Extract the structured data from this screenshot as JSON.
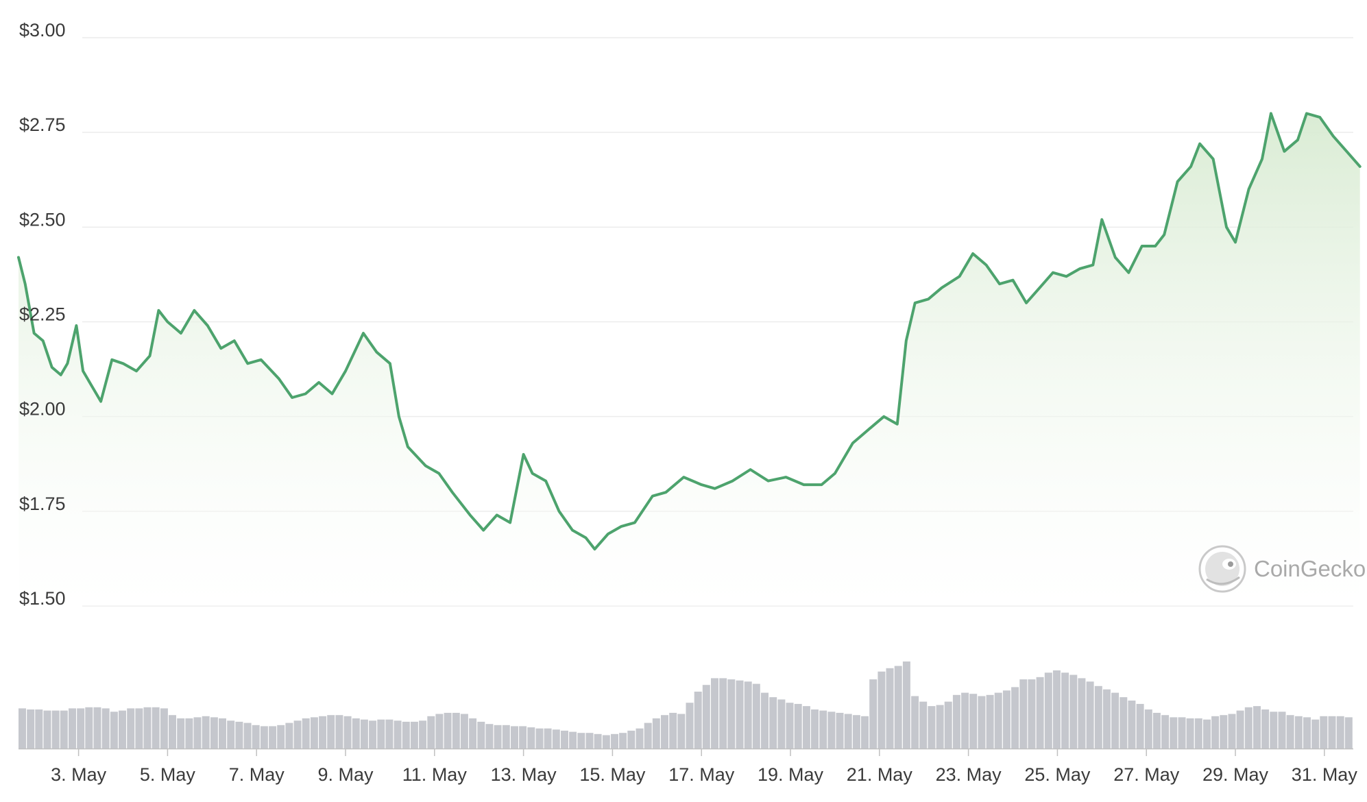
{
  "chart_data": {
    "type": "area",
    "title": "",
    "xlabel": "",
    "ylabel": "",
    "y_axis": {
      "min": 1.5,
      "max": 3.0,
      "ticks": [
        {
          "value": 3.0,
          "label": "$3.00"
        },
        {
          "value": 2.75,
          "label": "$2.75"
        },
        {
          "value": 2.5,
          "label": "$2.50"
        },
        {
          "value": 2.25,
          "label": "$2.25"
        },
        {
          "value": 2.0,
          "label": "$2.00"
        },
        {
          "value": 1.75,
          "label": "$1.75"
        },
        {
          "value": 1.5,
          "label": "$1.50"
        }
      ]
    },
    "x_axis": {
      "min": 1.65,
      "max": 31.65,
      "ticks": [
        {
          "value": 3,
          "label": "3. May"
        },
        {
          "value": 5,
          "label": "5. May"
        },
        {
          "value": 7,
          "label": "7. May"
        },
        {
          "value": 9,
          "label": "9. May"
        },
        {
          "value": 11,
          "label": "11. May"
        },
        {
          "value": 13,
          "label": "13. May"
        },
        {
          "value": 15,
          "label": "15. May"
        },
        {
          "value": 17,
          "label": "17. May"
        },
        {
          "value": 19,
          "label": "19. May"
        },
        {
          "value": 21,
          "label": "21. May"
        },
        {
          "value": 23,
          "label": "23. May"
        },
        {
          "value": 25,
          "label": "25. May"
        },
        {
          "value": 27,
          "label": "27. May"
        },
        {
          "value": 29,
          "label": "29. May"
        },
        {
          "value": 31,
          "label": "31. May"
        }
      ]
    },
    "grid": true,
    "legend": "none",
    "series": [
      {
        "values": [
          [
            1.65,
            2.42
          ],
          [
            1.8,
            2.35
          ],
          [
            2.0,
            2.22
          ],
          [
            2.2,
            2.2
          ],
          [
            2.4,
            2.13
          ],
          [
            2.6,
            2.11
          ],
          [
            2.75,
            2.14
          ],
          [
            2.95,
            2.24
          ],
          [
            3.1,
            2.12
          ],
          [
            3.3,
            2.08
          ],
          [
            3.5,
            2.04
          ],
          [
            3.75,
            2.15
          ],
          [
            4.0,
            2.14
          ],
          [
            4.3,
            2.12
          ],
          [
            4.6,
            2.16
          ],
          [
            4.8,
            2.28
          ],
          [
            5.0,
            2.25
          ],
          [
            5.3,
            2.22
          ],
          [
            5.6,
            2.28
          ],
          [
            5.9,
            2.24
          ],
          [
            6.2,
            2.18
          ],
          [
            6.5,
            2.2
          ],
          [
            6.8,
            2.14
          ],
          [
            7.1,
            2.15
          ],
          [
            7.5,
            2.1
          ],
          [
            7.8,
            2.05
          ],
          [
            8.1,
            2.06
          ],
          [
            8.4,
            2.09
          ],
          [
            8.7,
            2.06
          ],
          [
            9.0,
            2.12
          ],
          [
            9.4,
            2.22
          ],
          [
            9.7,
            2.17
          ],
          [
            10.0,
            2.14
          ],
          [
            10.2,
            2.0
          ],
          [
            10.4,
            1.92
          ],
          [
            10.8,
            1.87
          ],
          [
            11.1,
            1.85
          ],
          [
            11.4,
            1.8
          ],
          [
            11.8,
            1.74
          ],
          [
            12.1,
            1.7
          ],
          [
            12.4,
            1.74
          ],
          [
            12.7,
            1.72
          ],
          [
            13.0,
            1.9
          ],
          [
            13.2,
            1.85
          ],
          [
            13.5,
            1.83
          ],
          [
            13.8,
            1.75
          ],
          [
            14.1,
            1.7
          ],
          [
            14.4,
            1.68
          ],
          [
            14.6,
            1.65
          ],
          [
            14.9,
            1.69
          ],
          [
            15.2,
            1.71
          ],
          [
            15.5,
            1.72
          ],
          [
            15.9,
            1.79
          ],
          [
            16.2,
            1.8
          ],
          [
            16.6,
            1.84
          ],
          [
            17.0,
            1.82
          ],
          [
            17.3,
            1.81
          ],
          [
            17.7,
            1.83
          ],
          [
            18.1,
            1.86
          ],
          [
            18.5,
            1.83
          ],
          [
            18.9,
            1.84
          ],
          [
            19.3,
            1.82
          ],
          [
            19.7,
            1.82
          ],
          [
            20.0,
            1.85
          ],
          [
            20.4,
            1.93
          ],
          [
            20.8,
            1.97
          ],
          [
            21.1,
            2.0
          ],
          [
            21.4,
            1.98
          ],
          [
            21.6,
            2.2
          ],
          [
            21.8,
            2.3
          ],
          [
            22.1,
            2.31
          ],
          [
            22.4,
            2.34
          ],
          [
            22.8,
            2.37
          ],
          [
            23.1,
            2.43
          ],
          [
            23.4,
            2.4
          ],
          [
            23.7,
            2.35
          ],
          [
            24.0,
            2.36
          ],
          [
            24.3,
            2.3
          ],
          [
            24.6,
            2.34
          ],
          [
            24.9,
            2.38
          ],
          [
            25.2,
            2.37
          ],
          [
            25.5,
            2.39
          ],
          [
            25.8,
            2.4
          ],
          [
            26.0,
            2.52
          ],
          [
            26.3,
            2.42
          ],
          [
            26.6,
            2.38
          ],
          [
            26.9,
            2.45
          ],
          [
            27.2,
            2.45
          ],
          [
            27.4,
            2.48
          ],
          [
            27.7,
            2.62
          ],
          [
            28.0,
            2.66
          ],
          [
            28.2,
            2.72
          ],
          [
            28.5,
            2.68
          ],
          [
            28.8,
            2.5
          ],
          [
            29.0,
            2.46
          ],
          [
            29.3,
            2.6
          ],
          [
            29.6,
            2.68
          ],
          [
            29.8,
            2.8
          ],
          [
            30.1,
            2.7
          ],
          [
            30.4,
            2.73
          ],
          [
            30.6,
            2.8
          ],
          [
            30.9,
            2.79
          ],
          [
            31.2,
            2.74
          ],
          [
            31.5,
            2.7
          ],
          [
            31.8,
            2.66
          ]
        ]
      }
    ],
    "volume": {
      "relative_values": [
        0.36,
        0.35,
        0.35,
        0.34,
        0.34,
        0.34,
        0.36,
        0.36,
        0.37,
        0.37,
        0.36,
        0.33,
        0.34,
        0.36,
        0.36,
        0.37,
        0.37,
        0.36,
        0.3,
        0.27,
        0.27,
        0.28,
        0.29,
        0.28,
        0.27,
        0.25,
        0.24,
        0.23,
        0.21,
        0.2,
        0.2,
        0.21,
        0.23,
        0.25,
        0.27,
        0.28,
        0.29,
        0.3,
        0.3,
        0.29,
        0.27,
        0.26,
        0.25,
        0.26,
        0.26,
        0.25,
        0.24,
        0.24,
        0.25,
        0.29,
        0.31,
        0.32,
        0.32,
        0.31,
        0.27,
        0.24,
        0.22,
        0.21,
        0.21,
        0.2,
        0.2,
        0.19,
        0.18,
        0.18,
        0.17,
        0.16,
        0.15,
        0.14,
        0.14,
        0.13,
        0.12,
        0.13,
        0.14,
        0.16,
        0.18,
        0.23,
        0.27,
        0.3,
        0.32,
        0.31,
        0.41,
        0.51,
        0.57,
        0.63,
        0.63,
        0.62,
        0.61,
        0.6,
        0.58,
        0.5,
        0.46,
        0.44,
        0.41,
        0.4,
        0.38,
        0.35,
        0.34,
        0.33,
        0.32,
        0.31,
        0.3,
        0.29,
        0.62,
        0.69,
        0.72,
        0.74,
        0.78,
        0.47,
        0.42,
        0.38,
        0.39,
        0.42,
        0.48,
        0.5,
        0.49,
        0.47,
        0.48,
        0.5,
        0.52,
        0.55,
        0.62,
        0.62,
        0.64,
        0.68,
        0.7,
        0.68,
        0.66,
        0.63,
        0.6,
        0.56,
        0.53,
        0.5,
        0.46,
        0.43,
        0.4,
        0.35,
        0.32,
        0.3,
        0.28,
        0.28,
        0.27,
        0.27,
        0.26,
        0.29,
        0.3,
        0.31,
        0.34,
        0.37,
        0.38,
        0.35,
        0.33,
        0.33,
        0.3,
        0.29,
        0.28,
        0.26,
        0.29,
        0.29,
        0.29,
        0.28
      ]
    }
  },
  "watermark": {
    "brand": "CoinGecko",
    "logo_icon": "gecko-logo-icon"
  },
  "colors": {
    "line": "#4da36d",
    "area_top": "#d8ebd2",
    "area_bottom": "#ffffff",
    "volume": "#c5c7cd",
    "grid": "#ececec",
    "text": "#3a3a3a",
    "watermark": "#a9a9a9"
  }
}
